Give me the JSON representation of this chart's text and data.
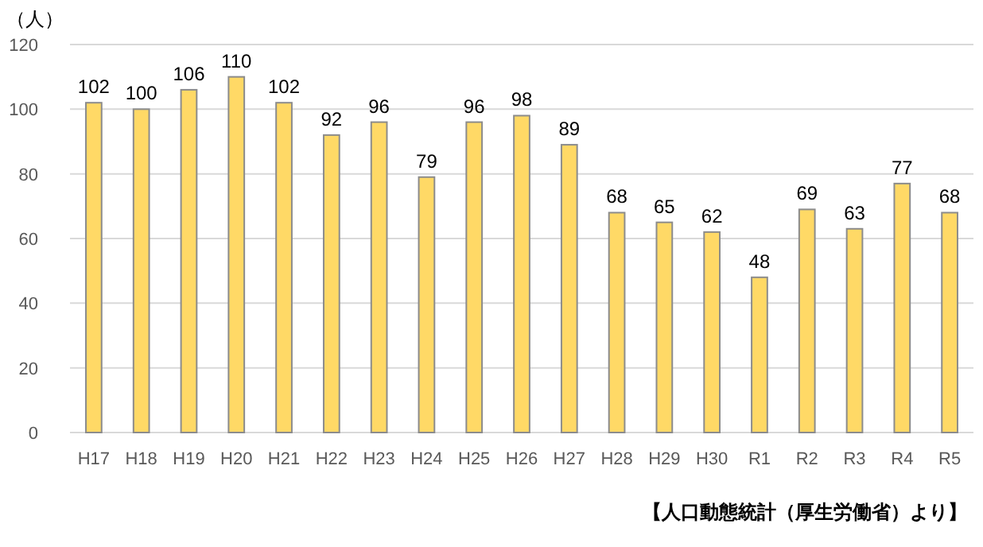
{
  "chart_data": {
    "type": "bar",
    "ylabel": "（人）",
    "categories": [
      "H17",
      "H18",
      "H19",
      "H20",
      "H21",
      "H22",
      "H23",
      "H24",
      "H25",
      "H26",
      "H27",
      "H28",
      "H29",
      "H30",
      "R1",
      "R2",
      "R3",
      "R4",
      "R5"
    ],
    "values": [
      102,
      100,
      106,
      110,
      102,
      92,
      96,
      79,
      96,
      98,
      89,
      68,
      65,
      62,
      48,
      69,
      63,
      77,
      68
    ],
    "color": "#ffd966",
    "ylim": [
      0,
      120
    ],
    "yticks": [
      0,
      20,
      40,
      60,
      80,
      100,
      120
    ],
    "grid": "y",
    "data_labels": true,
    "annotations": [
      "【人口動態統計（厚生労働省）より】"
    ]
  }
}
